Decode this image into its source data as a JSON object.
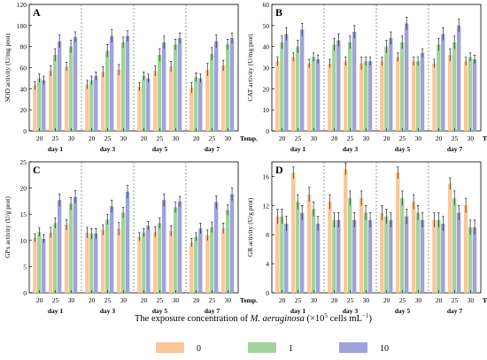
{
  "legend": {
    "title_pre": "The exposure concentration of ",
    "title_italic": "M. aeruginosa",
    "title_post": " (×10",
    "title_sup1": "5",
    "title_post2": " cells mL",
    "title_sup2": "−1",
    "title_end": ")",
    "items": [
      {
        "label": "0",
        "color": "#F9C79A"
      },
      {
        "label": "1",
        "color": "#A3D39C"
      },
      {
        "label": "10",
        "color": "#9EA3DB"
      }
    ]
  },
  "chart_data": [
    {
      "type": "bar",
      "panel": "A",
      "ylabel": "SOD activity (U/mg prot)",
      "ylim": [
        0,
        120
      ],
      "yticks": [
        0,
        20,
        40,
        60,
        80,
        100,
        120
      ],
      "groups": [
        "day 1",
        "day 3",
        "day 5",
        "day 7"
      ],
      "temps": [
        "20",
        "25",
        "30"
      ],
      "xlabel": "Temp.",
      "series": [
        {
          "name": "0",
          "values": [
            [
              43,
              57,
              61
            ],
            [
              44,
              56,
              58
            ],
            [
              42,
              57,
              61
            ],
            [
              41,
              58,
              62
            ]
          ],
          "errors": [
            [
              4,
              5,
              4
            ],
            [
              4,
              5,
              5
            ],
            [
              4,
              5,
              5
            ],
            [
              5,
              6,
              5
            ]
          ]
        },
        {
          "name": "1",
          "values": [
            [
              50,
              72,
              80
            ],
            [
              48,
              76,
              84
            ],
            [
              52,
              72,
              82
            ],
            [
              51,
              73,
              82
            ]
          ],
          "errors": [
            [
              4,
              6,
              6
            ],
            [
              4,
              6,
              5
            ],
            [
              4,
              6,
              5
            ],
            [
              4,
              6,
              5
            ]
          ]
        },
        {
          "name": "10",
          "values": [
            [
              48,
              85,
              89
            ],
            [
              52,
              90,
              90
            ],
            [
              50,
              84,
              88
            ],
            [
              50,
              85,
              88
            ]
          ],
          "errors": [
            [
              4,
              6,
              5
            ],
            [
              4,
              6,
              5
            ],
            [
              4,
              6,
              5
            ],
            [
              4,
              6,
              5
            ]
          ]
        }
      ]
    },
    {
      "type": "bar",
      "panel": "B",
      "ylabel": "CAT activity (U/mg prot)",
      "ylim": [
        0,
        60
      ],
      "yticks": [
        0,
        10,
        20,
        30,
        40,
        50,
        60
      ],
      "groups": [
        "day 1",
        "day 3",
        "day 5",
        "day 7"
      ],
      "temps": [
        "20",
        "25",
        "30"
      ],
      "xlabel": "Temp.",
      "series": [
        {
          "name": "0",
          "values": [
            [
              33,
              35,
              32
            ],
            [
              32,
              33,
              32
            ],
            [
              33,
              35,
              33
            ],
            [
              32,
              36,
              33
            ]
          ],
          "errors": [
            [
              2,
              2,
              2
            ],
            [
              2,
              2,
              3
            ],
            [
              2,
              2,
              2
            ],
            [
              2,
              3,
              2
            ]
          ]
        },
        {
          "name": "1",
          "values": [
            [
              42,
              40,
              35
            ],
            [
              41,
              42,
              33
            ],
            [
              40,
              42,
              33
            ],
            [
              41,
              42,
              35
            ]
          ],
          "errors": [
            [
              3,
              3,
              2
            ],
            [
              3,
              3,
              2
            ],
            [
              3,
              3,
              2
            ],
            [
              3,
              3,
              2
            ]
          ]
        },
        {
          "name": "10",
          "values": [
            [
              46,
              48,
              34
            ],
            [
              43,
              47,
              33
            ],
            [
              44,
              51,
              37
            ],
            [
              46,
              50,
              34
            ]
          ],
          "errors": [
            [
              3,
              3,
              2
            ],
            [
              3,
              3,
              2
            ],
            [
              3,
              3,
              2
            ],
            [
              3,
              3,
              2
            ]
          ]
        }
      ]
    },
    {
      "type": "bar",
      "panel": "C",
      "ylabel": "GPx activity (U/g prot)",
      "ylim": [
        0,
        25
      ],
      "yticks": [
        0,
        5,
        10,
        15,
        20,
        25
      ],
      "groups": [
        "day 1",
        "day 3",
        "day 5",
        "day 7"
      ],
      "temps": [
        "20",
        "25",
        "30"
      ],
      "xlabel": "Temp.",
      "series": [
        {
          "name": "0",
          "values": [
            [
              10.5,
              11.5,
              13
            ],
            [
              11.5,
              12,
              12.2
            ],
            [
              10.7,
              11.6,
              11.8
            ],
            [
              9.6,
              11,
              12.3
            ]
          ],
          "errors": [
            [
              0.8,
              1,
              1
            ],
            [
              1,
              1,
              1.2
            ],
            [
              0.8,
              1,
              1
            ],
            [
              0.8,
              1,
              1
            ]
          ]
        },
        {
          "name": "1",
          "values": [
            [
              11.6,
              13.3,
              17
            ],
            [
              11.3,
              14,
              15.3
            ],
            [
              11.5,
              13.3,
              16.3
            ],
            [
              10.7,
              12.5,
              15.8
            ]
          ],
          "errors": [
            [
              0.8,
              1,
              1.2
            ],
            [
              1,
              1,
              1
            ],
            [
              0.8,
              1,
              1
            ],
            [
              0.8,
              1,
              1
            ]
          ]
        },
        {
          "name": "10",
          "values": [
            [
              10.3,
              17.7,
              18.3
            ],
            [
              11.3,
              16.5,
              19.3
            ],
            [
              12.8,
              17.7,
              17.4
            ],
            [
              12.3,
              17.3,
              18.8
            ]
          ],
          "errors": [
            [
              0.8,
              1.2,
              1.2
            ],
            [
              1,
              1.2,
              1.2
            ],
            [
              0.8,
              1.2,
              1
            ],
            [
              1,
              1.2,
              1.2
            ]
          ]
        }
      ]
    },
    {
      "type": "bar",
      "panel": "D",
      "ylabel": "GR activity (U/g prot)",
      "ylim": [
        0,
        18
      ],
      "yticks": [
        0,
        4,
        8,
        12,
        16
      ],
      "groups": [
        "day 1",
        "day 3",
        "day 5",
        "day 7"
      ],
      "temps": [
        "20",
        "25",
        "30"
      ],
      "xlabel": "Temp.",
      "series": [
        {
          "name": "0",
          "values": [
            [
              10.5,
              16.5,
              13.5
            ],
            [
              12.5,
              17,
              13
            ],
            [
              11,
              16.5,
              12.5
            ],
            [
              10,
              15,
              12
            ]
          ],
          "errors": [
            [
              1,
              0.8,
              1
            ],
            [
              1,
              0.8,
              1
            ],
            [
              1,
              0.8,
              1
            ],
            [
              1,
              0.8,
              1
            ]
          ]
        },
        {
          "name": "1",
          "values": [
            [
              10.5,
              12.5,
              11.5
            ],
            [
              10,
              13,
              11
            ],
            [
              10.5,
              13,
              11
            ],
            [
              10,
              13,
              9
            ]
          ],
          "errors": [
            [
              1,
              1,
              1
            ],
            [
              1,
              1,
              1
            ],
            [
              1,
              1,
              1
            ],
            [
              1,
              1,
              1
            ]
          ]
        },
        {
          "name": "10",
          "values": [
            [
              9.5,
              11,
              9.5
            ],
            [
              10,
              10,
              10
            ],
            [
              10,
              10.5,
              10
            ],
            [
              9.5,
              11,
              9
            ]
          ],
          "errors": [
            [
              1,
              1,
              1
            ],
            [
              1,
              1,
              1
            ],
            [
              1,
              1,
              1
            ],
            [
              1,
              1,
              1
            ]
          ]
        }
      ]
    }
  ]
}
